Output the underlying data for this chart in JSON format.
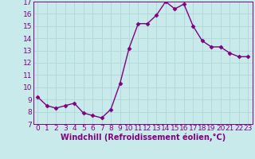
{
  "x": [
    0,
    1,
    2,
    3,
    4,
    5,
    6,
    7,
    8,
    9,
    10,
    11,
    12,
    13,
    14,
    15,
    16,
    17,
    18,
    19,
    20,
    21,
    22,
    23
  ],
  "y": [
    9.2,
    8.5,
    8.3,
    8.5,
    8.7,
    7.9,
    7.7,
    7.5,
    8.2,
    10.3,
    13.2,
    15.2,
    15.2,
    15.9,
    17.0,
    16.4,
    16.8,
    15.0,
    13.8,
    13.3,
    13.3,
    12.8,
    12.5,
    12.5
  ],
  "line_color": "#800080",
  "marker": "D",
  "marker_size": 2.5,
  "bg_color": "#c8eaea",
  "grid_color": "#b0d8d8",
  "ylim": [
    7,
    17
  ],
  "xlim_min": -0.5,
  "xlim_max": 23.5,
  "yticks": [
    7,
    8,
    9,
    10,
    11,
    12,
    13,
    14,
    15,
    16,
    17
  ],
  "xticks": [
    0,
    1,
    2,
    3,
    4,
    5,
    6,
    7,
    8,
    9,
    10,
    11,
    12,
    13,
    14,
    15,
    16,
    17,
    18,
    19,
    20,
    21,
    22,
    23
  ],
  "xlabel": "Windchill (Refroidissement éolien,°C)",
  "title_color": "#800080",
  "xlabel_fontsize": 7.0,
  "tick_fontsize": 6.5,
  "line_width": 1.0
}
